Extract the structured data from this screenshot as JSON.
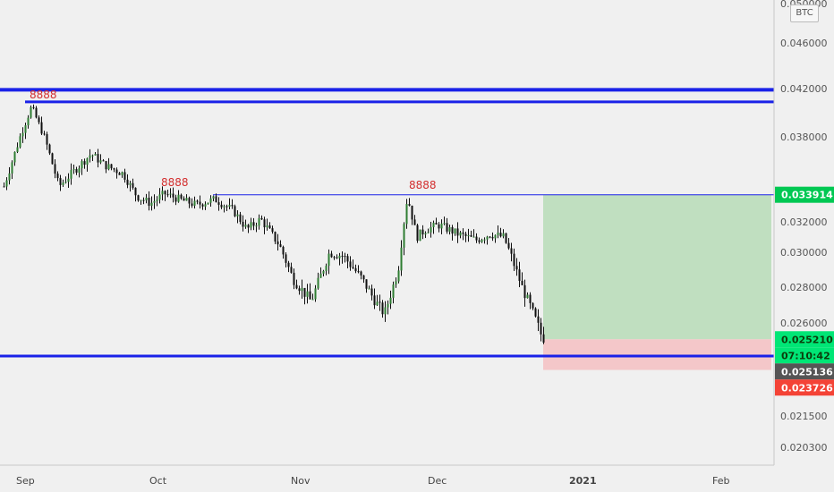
{
  "chart_data": {
    "type": "candlestick",
    "currency": "BTC",
    "x_ticks": [
      "Sep",
      "Oct",
      "Nov",
      "Dec",
      "2021",
      "Feb"
    ],
    "y_ticks": [
      "0.050000",
      "0.046000",
      "0.042000",
      "0.038000",
      "0.032000",
      "0.030000",
      "0.028000",
      "0.026000",
      "0.021500",
      "0.020300"
    ],
    "markers": [
      "8888",
      "8888",
      "8888"
    ],
    "horizontal_levels": [
      0.0419,
      0.0409,
      0.03391,
      0.0244
    ],
    "price_labels": [
      {
        "value": "0.033914",
        "color": "#00c853"
      },
      {
        "value": "0.025210",
        "color": "#00e676"
      },
      {
        "value": "07:10:42",
        "color": "#00e676"
      },
      {
        "value": "0.025136",
        "color": "#555555"
      },
      {
        "value": "0.023726",
        "color": "#f44336"
      }
    ],
    "position": {
      "entry": 0.02521,
      "target": 0.033914,
      "stop": 0.023726
    },
    "series": [
      {
        "date": "2020-08-28",
        "close": 0.0345
      },
      {
        "date": "2020-09-01",
        "close": 0.0385
      },
      {
        "date": "2020-09-03",
        "close": 0.0405
      },
      {
        "date": "2020-09-06",
        "close": 0.0378
      },
      {
        "date": "2020-09-09",
        "close": 0.0345
      },
      {
        "date": "2020-09-12",
        "close": 0.0355
      },
      {
        "date": "2020-09-16",
        "close": 0.0368
      },
      {
        "date": "2020-09-19",
        "close": 0.036
      },
      {
        "date": "2020-09-23",
        "close": 0.0354
      },
      {
        "date": "2020-09-26",
        "close": 0.0338
      },
      {
        "date": "2020-09-29",
        "close": 0.0333
      },
      {
        "date": "2020-10-02",
        "close": 0.034
      },
      {
        "date": "2020-10-06",
        "close": 0.0335
      },
      {
        "date": "2020-10-09",
        "close": 0.0332
      },
      {
        "date": "2020-10-13",
        "close": 0.0336
      },
      {
        "date": "2020-10-17",
        "close": 0.0328
      },
      {
        "date": "2020-10-20",
        "close": 0.0315
      },
      {
        "date": "2020-10-23",
        "close": 0.0322
      },
      {
        "date": "2020-10-27",
        "close": 0.0305
      },
      {
        "date": "2020-10-30",
        "close": 0.0285
      },
      {
        "date": "2020-11-03",
        "close": 0.0272
      },
      {
        "date": "2020-11-07",
        "close": 0.03
      },
      {
        "date": "2020-11-10",
        "close": 0.0298
      },
      {
        "date": "2020-11-14",
        "close": 0.0285
      },
      {
        "date": "2020-11-17",
        "close": 0.0272
      },
      {
        "date": "2020-11-19",
        "close": 0.0265
      },
      {
        "date": "2020-11-22",
        "close": 0.029
      },
      {
        "date": "2020-11-24",
        "close": 0.0338
      },
      {
        "date": "2020-11-26",
        "close": 0.031
      },
      {
        "date": "2020-11-28",
        "close": 0.0315
      },
      {
        "date": "2020-12-01",
        "close": 0.0318
      },
      {
        "date": "2020-12-05",
        "close": 0.0312
      },
      {
        "date": "2020-12-09",
        "close": 0.0308
      },
      {
        "date": "2020-12-12",
        "close": 0.0312
      },
      {
        "date": "2020-12-15",
        "close": 0.031
      },
      {
        "date": "2020-12-17",
        "close": 0.0295
      },
      {
        "date": "2020-12-19",
        "close": 0.028
      },
      {
        "date": "2020-12-21",
        "close": 0.0268
      },
      {
        "date": "2020-12-23",
        "close": 0.0255
      },
      {
        "date": "2020-12-24",
        "close": 0.02521
      }
    ]
  }
}
